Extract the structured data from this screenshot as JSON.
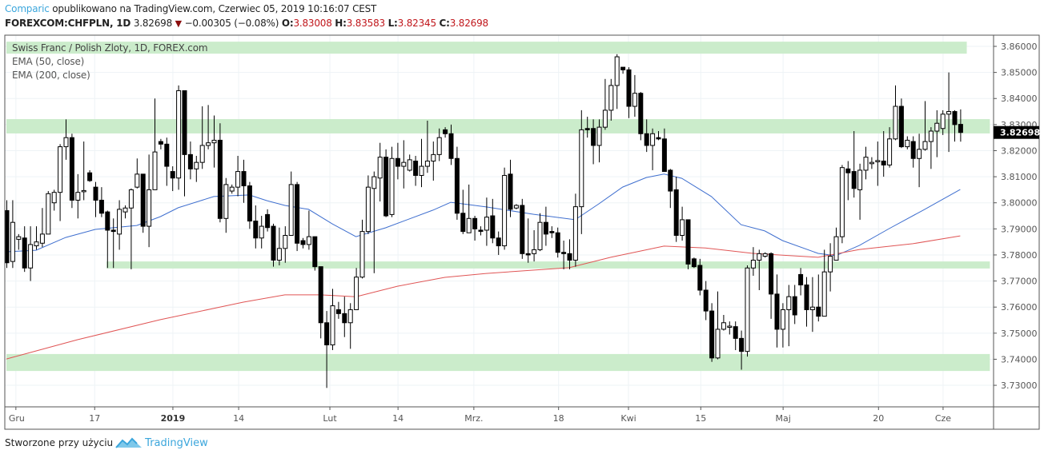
{
  "header": {
    "author": "Comparic",
    "published": "opublikowano na TradingView.com, Czerwiec 05, 2019 10:16:07 CEST",
    "symbol": "FOREXCOM:CHFPLN, 1D",
    "last": "3.82698",
    "change": "−0.00305 (−0.08%)",
    "o_label": "O:",
    "o": "3.83008",
    "h_label": "H:",
    "h": "3.83583",
    "l_label": "L:",
    "l": "3.82345",
    "c_label": "C:",
    "c": "3.82698",
    "direction_icon": "triangle-down-icon"
  },
  "legend": {
    "title": "Swiss Franc / Polish Zloty, 1D, FOREX.com",
    "ema50": "EMA (50, close)",
    "ema200": "EMA (200, close)"
  },
  "footer": {
    "text": "Stworzone przy użyciu",
    "brand": "TradingView"
  },
  "colors": {
    "up_fill": "#ffffff",
    "down_fill": "#000000",
    "outline": "#000000",
    "ema50": "#3f6fcf",
    "ema200": "#e05555",
    "zone": "#c8ebc8",
    "author": "#3ba6dc"
  },
  "chart_data": {
    "type": "candlestick",
    "title": "Swiss Franc / Polish Zloty, 1D, FOREX.com",
    "ylim": [
      3.7235,
      3.8655
    ],
    "y_ticks": [
      "3.86000",
      "3.85000",
      "3.84000",
      "3.83000",
      "3.82000",
      "3.81000",
      "3.80000",
      "3.79000",
      "3.78000",
      "3.77000",
      "3.76000",
      "3.75000",
      "3.74000",
      "3.73000"
    ],
    "last_price_label": "3.82698",
    "last_price": 3.82698,
    "x_ticks": [
      {
        "i": 1.6,
        "label": "Gru",
        "bold": false
      },
      {
        "i": 14.9,
        "label": "17",
        "bold": false
      },
      {
        "i": 28.1,
        "label": "2019",
        "bold": true
      },
      {
        "i": 39.2,
        "label": "14",
        "bold": false
      },
      {
        "i": 54.6,
        "label": "Lut",
        "bold": false
      },
      {
        "i": 66.1,
        "label": "14",
        "bold": false
      },
      {
        "i": 78.9,
        "label": "Mrz.",
        "bold": false
      },
      {
        "i": 93.2,
        "label": "18",
        "bold": false
      },
      {
        "i": 105,
        "label": "Kwi",
        "bold": false
      },
      {
        "i": 117.2,
        "label": "15",
        "bold": false
      },
      {
        "i": 131.1,
        "label": "Maj",
        "bold": false
      },
      {
        "i": 147.2,
        "label": "20",
        "bold": false
      },
      {
        "i": 158.1,
        "label": "Cze",
        "bold": false
      }
    ],
    "zones": [
      {
        "from": 3.8572,
        "to": 3.8618,
        "start": 0,
        "end": 162.1
      },
      {
        "from": 3.8266,
        "to": 3.8321,
        "start": 0,
        "end": 166
      },
      {
        "from": 3.7748,
        "to": 3.7775,
        "start": 16.9,
        "end": 166
      },
      {
        "from": 3.7355,
        "to": 3.742,
        "start": 0,
        "end": 166
      }
    ],
    "ohlc": [
      [
        3.797,
        3.801,
        3.775,
        3.777
      ],
      [
        3.7775,
        3.801,
        3.775,
        3.7925
      ],
      [
        3.786,
        3.788,
        3.782,
        3.787
      ],
      [
        3.7865,
        3.791,
        3.7735,
        3.775
      ],
      [
        3.775,
        3.791,
        3.77,
        3.784
      ],
      [
        3.7835,
        3.791,
        3.782,
        3.785
      ],
      [
        3.7845,
        3.798,
        3.783,
        3.788
      ],
      [
        3.788,
        3.8045,
        3.788,
        3.8035
      ],
      [
        3.8,
        3.805,
        3.797,
        3.804
      ],
      [
        3.804,
        3.8225,
        3.793,
        3.8215
      ],
      [
        3.8215,
        3.832,
        3.8165,
        3.825
      ],
      [
        3.825,
        3.8265,
        3.798,
        3.801
      ],
      [
        3.801,
        3.811,
        3.794,
        3.804
      ],
      [
        3.8045,
        3.8235,
        3.801,
        3.8047
      ],
      [
        3.8115,
        3.8125,
        3.808,
        3.8085
      ],
      [
        3.806,
        3.808,
        3.7945,
        3.801
      ],
      [
        3.801,
        3.806,
        3.7945,
        3.796
      ],
      [
        3.7965,
        3.797,
        3.775,
        3.7895
      ],
      [
        3.7895,
        3.794,
        3.775,
        3.789
      ],
      [
        3.788,
        3.801,
        3.782,
        3.7975
      ],
      [
        3.7965,
        3.799,
        3.794,
        3.798
      ],
      [
        3.798,
        3.8055,
        3.7745,
        3.805
      ],
      [
        3.806,
        3.817,
        3.8055,
        3.811
      ],
      [
        3.811,
        3.811,
        3.7885,
        3.791
      ],
      [
        3.791,
        3.8185,
        3.783,
        3.805
      ],
      [
        3.805,
        3.84,
        3.805,
        3.8195
      ],
      [
        3.8235,
        3.8245,
        3.8205,
        3.8225
      ],
      [
        3.8225,
        3.825,
        3.8065,
        3.814
      ],
      [
        3.812,
        3.814,
        3.8045,
        3.8095
      ],
      [
        3.8095,
        3.845,
        3.805,
        3.843
      ],
      [
        3.843,
        3.843,
        3.8025,
        3.8185
      ],
      [
        3.8185,
        3.8235,
        3.809,
        3.813
      ],
      [
        3.813,
        3.818,
        3.808,
        3.8155
      ],
      [
        3.8155,
        3.837,
        3.813,
        3.822
      ],
      [
        3.822,
        3.8375,
        3.8205,
        3.823
      ],
      [
        3.823,
        3.8335,
        3.8135,
        3.824
      ],
      [
        3.824,
        3.8305,
        3.7925,
        3.794
      ],
      [
        3.794,
        3.8095,
        3.7885,
        3.807
      ],
      [
        3.8045,
        3.807,
        3.8035,
        3.806
      ],
      [
        3.806,
        3.818,
        3.8025,
        3.812
      ],
      [
        3.812,
        3.8165,
        3.8,
        3.8065
      ],
      [
        3.8065,
        3.808,
        3.79,
        3.793
      ],
      [
        3.793,
        3.799,
        3.7825,
        3.7865
      ],
      [
        3.7865,
        3.795,
        3.7825,
        3.791
      ],
      [
        3.7955,
        3.7975,
        3.789,
        3.7905
      ],
      [
        3.791,
        3.792,
        3.7755,
        3.778
      ],
      [
        3.778,
        3.7905,
        3.776,
        3.7825
      ],
      [
        3.7825,
        3.791,
        3.777,
        3.7875
      ],
      [
        3.7875,
        3.812,
        3.7875,
        3.807
      ],
      [
        3.807,
        3.808,
        3.7815,
        3.7845
      ],
      [
        3.7855,
        3.7865,
        3.7825,
        3.784
      ],
      [
        3.784,
        3.797,
        3.782,
        3.787
      ],
      [
        3.787,
        3.787,
        3.774,
        3.7755
      ],
      [
        3.7755,
        3.7755,
        3.748,
        3.754
      ],
      [
        3.754,
        3.7585,
        3.729,
        3.7455
      ],
      [
        3.7455,
        3.767,
        3.7435,
        3.7605
      ],
      [
        3.759,
        3.762,
        3.7555,
        3.7575
      ],
      [
        3.7575,
        3.764,
        3.7485,
        3.754
      ],
      [
        3.754,
        3.7615,
        3.744,
        3.759
      ],
      [
        3.759,
        3.775,
        3.759,
        3.7715
      ],
      [
        3.7715,
        3.7935,
        3.771,
        3.789
      ],
      [
        3.789,
        3.8105,
        3.788,
        3.806
      ],
      [
        3.8055,
        3.812,
        3.773,
        3.81
      ],
      [
        3.8095,
        3.823,
        3.8005,
        3.8175
      ],
      [
        3.8175,
        3.8205,
        3.7945,
        3.795
      ],
      [
        3.7955,
        3.8215,
        3.7945,
        3.817
      ],
      [
        3.817,
        3.823,
        3.809,
        3.814
      ],
      [
        3.814,
        3.824,
        3.8055,
        3.8155
      ],
      [
        3.8125,
        3.8185,
        3.812,
        3.8165
      ],
      [
        3.816,
        3.818,
        3.8065,
        3.8105
      ],
      [
        3.8105,
        3.8245,
        3.806,
        3.814
      ],
      [
        3.814,
        3.8315,
        3.8115,
        3.816
      ],
      [
        3.816,
        3.8235,
        3.8085,
        3.8185
      ],
      [
        3.8185,
        3.8285,
        3.816,
        3.825
      ],
      [
        3.828,
        3.829,
        3.825,
        3.8265
      ],
      [
        3.8265,
        3.83,
        3.8145,
        3.817
      ],
      [
        3.817,
        3.8215,
        3.7935,
        3.796
      ],
      [
        3.796,
        3.805,
        3.788,
        3.789
      ],
      [
        3.7885,
        3.807,
        3.7885,
        3.794
      ],
      [
        3.794,
        3.795,
        3.7855,
        3.79
      ],
      [
        3.7895,
        3.791,
        3.7875,
        3.7893
      ],
      [
        3.7895,
        3.802,
        3.7835,
        3.7945
      ],
      [
        3.795,
        3.8015,
        3.7845,
        3.7865
      ],
      [
        3.7865,
        3.789,
        3.78,
        3.7835
      ],
      [
        3.7835,
        3.8135,
        3.782,
        3.8105
      ],
      [
        3.811,
        3.8165,
        3.7945,
        3.7975
      ],
      [
        3.798,
        3.7995,
        3.7975,
        3.799
      ],
      [
        3.799,
        3.8015,
        3.7785,
        3.7805
      ],
      [
        3.7805,
        3.794,
        3.777,
        3.78
      ],
      [
        3.7805,
        3.7895,
        3.7775,
        3.782
      ],
      [
        3.782,
        3.796,
        3.7815,
        3.7925
      ],
      [
        3.7925,
        3.7985,
        3.7835,
        3.788
      ],
      [
        3.789,
        3.791,
        3.7865,
        3.7885
      ],
      [
        3.7885,
        3.7905,
        3.779,
        3.781
      ],
      [
        3.781,
        3.7855,
        3.7745,
        3.7805
      ],
      [
        3.7805,
        3.786,
        3.7745,
        3.778
      ],
      [
        3.778,
        3.8035,
        3.7755,
        3.7985
      ],
      [
        3.7985,
        3.8355,
        3.788,
        3.828
      ],
      [
        3.8285,
        3.833,
        3.825,
        3.828
      ],
      [
        3.8285,
        3.832,
        3.8148,
        3.822
      ],
      [
        3.822,
        3.832,
        3.8155,
        3.829
      ],
      [
        3.829,
        3.8475,
        3.828,
        3.8355
      ],
      [
        3.8355,
        3.8475,
        3.8315,
        3.845
      ],
      [
        3.845,
        3.857,
        3.836,
        3.856
      ],
      [
        3.852,
        3.852,
        3.8495,
        3.851
      ],
      [
        3.851,
        3.852,
        3.8325,
        3.837
      ],
      [
        3.837,
        3.849,
        3.833,
        3.842
      ],
      [
        3.842,
        3.8425,
        3.824,
        3.8265
      ],
      [
        3.8265,
        3.832,
        3.8195,
        3.822
      ],
      [
        3.822,
        3.8285,
        3.8125,
        3.8265
      ],
      [
        3.825,
        3.8275,
        3.824,
        3.8245
      ],
      [
        3.8245,
        3.8285,
        3.812,
        3.812
      ],
      [
        3.8125,
        3.813,
        3.798,
        3.8045
      ],
      [
        3.805,
        3.81,
        3.785,
        3.7875
      ],
      [
        3.7875,
        3.7985,
        3.7855,
        3.7935
      ],
      [
        3.7935,
        3.7935,
        3.7745,
        3.7765
      ],
      [
        3.7785,
        3.779,
        3.775,
        3.7755
      ],
      [
        3.776,
        3.7785,
        3.7645,
        3.7665
      ],
      [
        3.7665,
        3.77,
        3.755,
        3.7585
      ],
      [
        3.7585,
        3.7615,
        3.739,
        3.7405
      ],
      [
        3.7405,
        3.766,
        3.74,
        3.7515
      ],
      [
        3.7515,
        3.757,
        3.751,
        3.754
      ],
      [
        3.7525,
        3.7545,
        3.7495,
        3.7527
      ],
      [
        3.7525,
        3.7545,
        3.7435,
        3.748
      ],
      [
        3.748,
        3.751,
        3.736,
        3.743
      ],
      [
        3.743,
        3.776,
        3.741,
        3.775
      ],
      [
        3.775,
        3.783,
        3.772,
        3.778
      ],
      [
        3.778,
        3.782,
        3.7665,
        3.7805
      ],
      [
        3.7795,
        3.781,
        3.779,
        3.7805
      ],
      [
        3.7805,
        3.781,
        3.7555,
        3.765
      ],
      [
        3.765,
        3.7725,
        3.7445,
        3.7515
      ],
      [
        3.7515,
        3.7615,
        3.7445,
        3.759
      ],
      [
        3.759,
        3.7685,
        3.745,
        3.764
      ],
      [
        3.764,
        3.7685,
        3.7535,
        3.757
      ],
      [
        3.7725,
        3.775,
        3.7645,
        3.7685
      ],
      [
        3.7685,
        3.7715,
        3.7525,
        3.759
      ],
      [
        3.759,
        3.7715,
        3.7505,
        3.76
      ],
      [
        3.76,
        3.7725,
        3.7545,
        3.7565
      ],
      [
        3.7565,
        3.782,
        3.7565,
        3.7735
      ],
      [
        3.7735,
        3.7845,
        3.766,
        3.7795
      ],
      [
        3.778,
        3.7905,
        3.778,
        3.787
      ],
      [
        3.787,
        3.8145,
        3.7845,
        3.8135
      ],
      [
        3.813,
        3.816,
        3.801,
        3.8115
      ],
      [
        3.812,
        3.8275,
        3.802,
        3.8055
      ],
      [
        3.805,
        3.815,
        3.7935,
        3.8125
      ],
      [
        3.8125,
        3.8215,
        3.809,
        3.8175
      ],
      [
        3.815,
        3.8175,
        3.813,
        3.8155
      ],
      [
        3.816,
        3.8235,
        3.8065,
        3.8162
      ],
      [
        3.816,
        3.8275,
        3.81,
        3.8145
      ],
      [
        3.8145,
        3.829,
        3.8135,
        3.8245
      ],
      [
        3.8245,
        3.845,
        3.824,
        3.837
      ],
      [
        3.837,
        3.84,
        3.821,
        3.8215
      ],
      [
        3.8215,
        3.8255,
        3.8205,
        3.824
      ],
      [
        3.8235,
        3.8255,
        3.8135,
        3.817
      ],
      [
        3.817,
        3.8265,
        3.806,
        3.8205
      ],
      [
        3.8205,
        3.839,
        3.82,
        3.8235
      ],
      [
        3.8235,
        3.829,
        3.813,
        3.8275
      ],
      [
        3.8275,
        3.8355,
        3.8175,
        3.8305
      ],
      [
        3.8285,
        3.8355,
        3.826,
        3.834
      ],
      [
        3.834,
        3.85,
        3.8195,
        3.835
      ],
      [
        3.835,
        3.8355,
        3.8235,
        3.83
      ],
      [
        3.83008,
        3.83583,
        3.82345,
        3.82698
      ]
    ],
    "series": [
      {
        "name": "EMA (50, close)",
        "points": [
          [
            0,
            3.7812
          ],
          [
            5,
            3.7818
          ],
          [
            10,
            3.7867
          ],
          [
            15,
            3.7898
          ],
          [
            22,
            3.7913
          ],
          [
            26,
            3.7947
          ],
          [
            29,
            3.7981
          ],
          [
            35,
            3.8024
          ],
          [
            41,
            3.803
          ],
          [
            44,
            3.8008
          ],
          [
            47,
            3.799
          ],
          [
            51,
            3.7975
          ],
          [
            55,
            3.7919
          ],
          [
            59,
            3.787
          ],
          [
            64,
            3.7904
          ],
          [
            72,
            3.7972
          ],
          [
            75,
            3.8002
          ],
          [
            81,
            3.7984
          ],
          [
            89,
            3.7956
          ],
          [
            96,
            3.7935
          ],
          [
            100,
            3.7996
          ],
          [
            104,
            3.806
          ],
          [
            108,
            3.8097
          ],
          [
            111,
            3.811
          ],
          [
            114,
            3.8094
          ],
          [
            119,
            3.8024
          ],
          [
            124,
            3.7916
          ],
          [
            128,
            3.7892
          ],
          [
            131,
            3.7855
          ],
          [
            137,
            3.7806
          ],
          [
            140,
            3.7797
          ],
          [
            144,
            3.7837
          ],
          [
            149,
            3.7901
          ],
          [
            155,
            3.7975
          ],
          [
            161,
            3.8051
          ]
        ]
      },
      {
        "name": "EMA (200, close)",
        "points": [
          [
            0,
            3.7401
          ],
          [
            12,
            3.7475
          ],
          [
            26,
            3.7552
          ],
          [
            40,
            3.7619
          ],
          [
            47,
            3.7647
          ],
          [
            53,
            3.7647
          ],
          [
            59,
            3.764
          ],
          [
            66,
            3.768
          ],
          [
            74,
            3.7714
          ],
          [
            81,
            3.7729
          ],
          [
            95,
            3.7751
          ],
          [
            102,
            3.7791
          ],
          [
            107,
            3.7815
          ],
          [
            111,
            3.7834
          ],
          [
            118,
            3.7827
          ],
          [
            126,
            3.7806
          ],
          [
            137,
            3.7791
          ],
          [
            144,
            3.7821
          ],
          [
            153,
            3.7843
          ],
          [
            161,
            3.7873
          ]
        ]
      }
    ]
  }
}
